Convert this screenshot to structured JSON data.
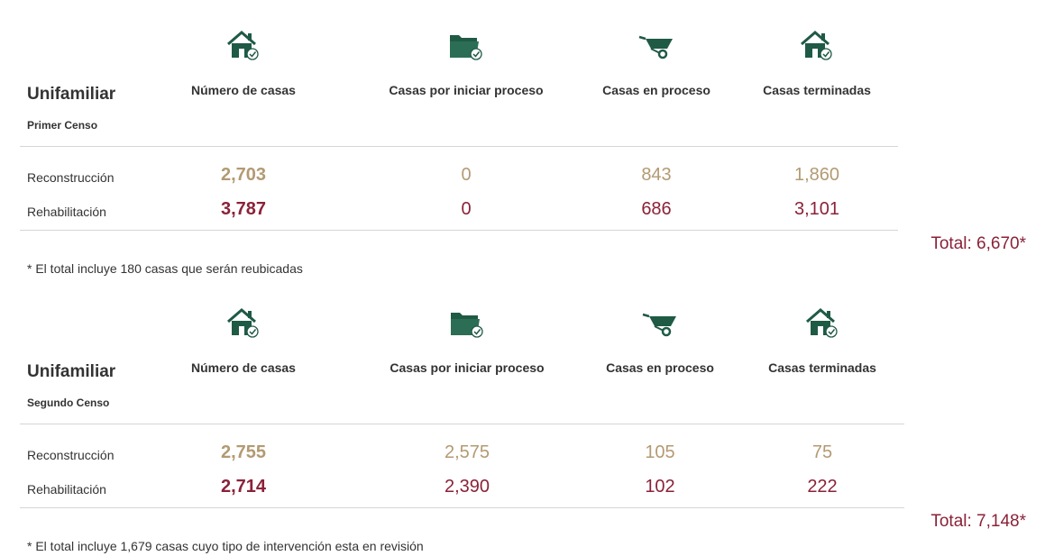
{
  "colors": {
    "icon": "#1f5a45",
    "gold": "#b39a72",
    "red": "#8a2238",
    "divider": "#d6d6d6"
  },
  "tables": [
    {
      "title": "Unifamiliar",
      "subtitle": "Primer Censo",
      "columns": [
        {
          "icon": "house-check-icon",
          "label": "Número de casas"
        },
        {
          "icon": "folder-check-icon",
          "label": "Casas por iniciar proceso"
        },
        {
          "icon": "wheelbarrow-icon",
          "label": "Casas en proceso"
        },
        {
          "icon": "house-check-icon",
          "label": "Casas terminadas"
        }
      ],
      "rows": [
        {
          "label": "Reconstrucción",
          "values": [
            "2,703",
            "0",
            "843",
            "1,860"
          ]
        },
        {
          "label": "Rehabilitación",
          "values": [
            "3,787",
            "0",
            "686",
            "3,101"
          ]
        }
      ],
      "total": "Total: 6,670*",
      "note": "* El total incluye 180 casas que serán reubicadas"
    },
    {
      "title": "Unifamiliar",
      "subtitle": "Segundo Censo",
      "columns": [
        {
          "icon": "house-check-icon",
          "label": "Número de casas"
        },
        {
          "icon": "folder-check-icon",
          "label": "Casas por iniciar proceso"
        },
        {
          "icon": "wheelbarrow-icon",
          "label": "Casas en proceso"
        },
        {
          "icon": "house-check-icon",
          "label": "Casas terminadas"
        }
      ],
      "rows": [
        {
          "label": "Reconstrucción",
          "values": [
            "2,755",
            "2,575",
            "105",
            "75"
          ]
        },
        {
          "label": "Rehabilitación",
          "values": [
            "2,714",
            "2,390",
            "102",
            "222"
          ]
        }
      ],
      "total": "Total: 7,148*",
      "note": "* El total incluye 1,679 casas cuyo tipo de intervención esta en revisión"
    }
  ]
}
